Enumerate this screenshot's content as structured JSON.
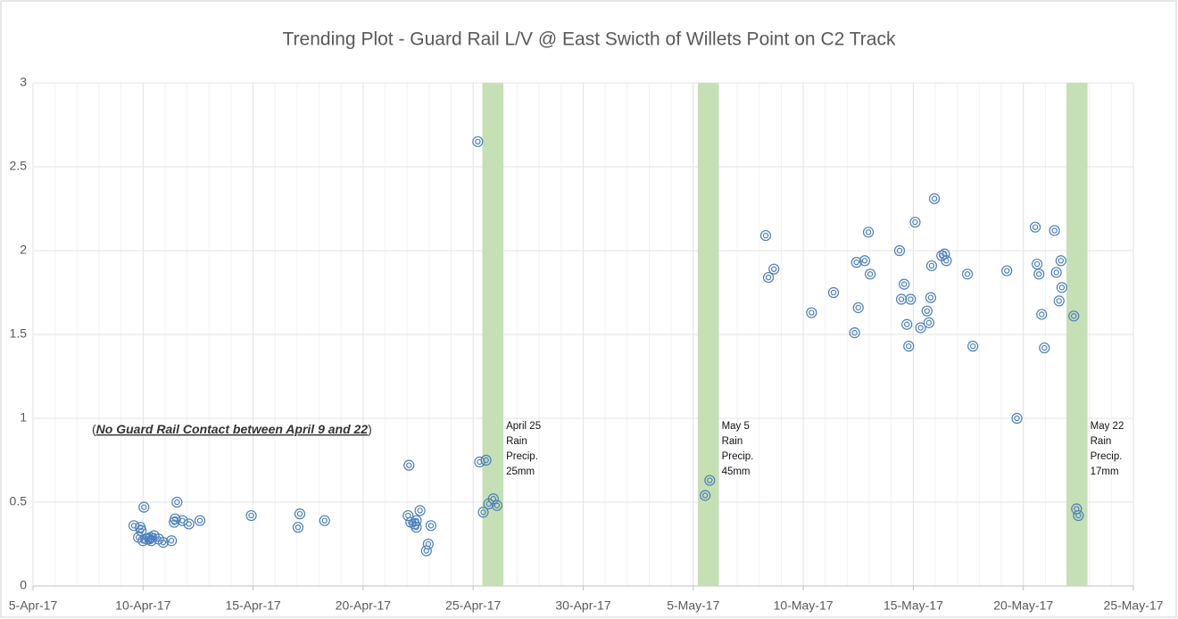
{
  "chart_data": {
    "type": "scatter",
    "title": "Trending Plot - Guard Rail L/V @ East Swicth of Willets Point on C2 Track",
    "xlim": [
      "2017-04-05T00:00",
      "2017-05-25T00:00"
    ],
    "xticks": [
      {
        "value": "2017-04-05T00:00",
        "label": "5-Apr-17"
      },
      {
        "value": "2017-04-10T00:00",
        "label": "10-Apr-17"
      },
      {
        "value": "2017-04-15T00:00",
        "label": "15-Apr-17"
      },
      {
        "value": "2017-04-20T00:00",
        "label": "20-Apr-17"
      },
      {
        "value": "2017-04-25T00:00",
        "label": "25-Apr-17"
      },
      {
        "value": "2017-04-30T00:00",
        "label": "30-Apr-17"
      },
      {
        "value": "2017-05-05T00:00",
        "label": "5-May-17"
      },
      {
        "value": "2017-05-10T00:00",
        "label": "10-May-17"
      },
      {
        "value": "2017-05-15T00:00",
        "label": "15-May-17"
      },
      {
        "value": "2017-05-20T00:00",
        "label": "20-May-17"
      },
      {
        "value": "2017-05-25T00:00",
        "label": "25-May-17"
      }
    ],
    "ylim": [
      0,
      3
    ],
    "yticks": [
      0,
      0.5,
      1,
      1.5,
      2,
      2.5,
      3
    ],
    "grid": true,
    "color": "#4a7ebb",
    "band_color": "#c5e0b4",
    "x": [
      "2017-04-09T14:00",
      "2017-04-09T19:00",
      "2017-04-09T21:00",
      "2017-04-09T22:00",
      "2017-04-10T01:00",
      "2017-04-10T00:00",
      "2017-04-10T04:00",
      "2017-04-10T07:00",
      "2017-04-10T08:00",
      "2017-04-10T09:00",
      "2017-04-10T12:00",
      "2017-04-10T17:00",
      "2017-04-10T22:00",
      "2017-04-11T07:00",
      "2017-04-11T10:00",
      "2017-04-11T11:00",
      "2017-04-11T13:00",
      "2017-04-11T19:00",
      "2017-04-12T02:00",
      "2017-04-12T14:00",
      "2017-04-14T22:00",
      "2017-04-17T01:00",
      "2017-04-17T03:00",
      "2017-04-18T06:00",
      "2017-04-22T01:00",
      "2017-04-22T02:00",
      "2017-04-22T04:00",
      "2017-04-22T08:00",
      "2017-04-22T10:00",
      "2017-04-22T10:00",
      "2017-04-22T14:00",
      "2017-04-22T21:00",
      "2017-04-22T23:00",
      "2017-04-23T02:00",
      "2017-04-25T05:00",
      "2017-04-25T07:00",
      "2017-04-25T11:00",
      "2017-04-25T14:00",
      "2017-04-25T17:00",
      "2017-04-25T22:00",
      "2017-04-26T02:00",
      "2017-05-05T13:00",
      "2017-05-05T18:00",
      "2017-05-08T07:00",
      "2017-05-08T10:00",
      "2017-05-08T16:00",
      "2017-05-10T09:00",
      "2017-05-11T09:00",
      "2017-05-12T08:00",
      "2017-05-12T10:00",
      "2017-05-12T12:00",
      "2017-05-12T19:00",
      "2017-05-12T23:00",
      "2017-05-13T01:00",
      "2017-05-14T09:00",
      "2017-05-14T11:00",
      "2017-05-14T14:00",
      "2017-05-14T17:00",
      "2017-05-14T19:00",
      "2017-05-14T21:00",
      "2017-05-15T02:00",
      "2017-05-15T08:00",
      "2017-05-15T15:00",
      "2017-05-15T17:00",
      "2017-05-15T19:00",
      "2017-05-15T20:00",
      "2017-05-15T23:00",
      "2017-05-16T07:00",
      "2017-05-16T10:00",
      "2017-05-16T12:00",
      "2017-05-17T11:00",
      "2017-05-17T17:00",
      "2017-05-19T06:00",
      "2017-05-19T17:00",
      "2017-05-20T13:00",
      "2017-05-20T15:00",
      "2017-05-20T17:00",
      "2017-05-20T20:00",
      "2017-05-20T23:00",
      "2017-05-21T10:00",
      "2017-05-21T12:00",
      "2017-05-21T15:00",
      "2017-05-21T17:00",
      "2017-05-21T18:00",
      "2017-05-22T07:00",
      "2017-05-22T10:00",
      "2017-05-22T12:00"
    ],
    "values": [
      0.36,
      0.29,
      0.35,
      0.33,
      0.47,
      0.27,
      0.28,
      0.28,
      0.29,
      0.27,
      0.3,
      0.28,
      0.26,
      0.27,
      0.38,
      0.4,
      0.5,
      0.39,
      0.37,
      0.39,
      0.42,
      0.35,
      0.43,
      0.39,
      0.42,
      0.72,
      0.38,
      0.37,
      0.39,
      0.35,
      0.45,
      0.21,
      0.25,
      0.36,
      2.65,
      0.74,
      0.44,
      0.75,
      0.49,
      0.52,
      0.48,
      0.54,
      0.63,
      2.09,
      1.84,
      1.89,
      1.63,
      1.75,
      1.51,
      1.93,
      1.66,
      1.94,
      2.11,
      1.86,
      2.0,
      1.71,
      1.8,
      1.56,
      1.43,
      1.71,
      2.17,
      1.54,
      1.64,
      1.57,
      1.72,
      1.91,
      2.31,
      1.97,
      1.98,
      1.94,
      1.86,
      1.43,
      1.88,
      1.0,
      2.14,
      1.92,
      1.86,
      1.62,
      1.42,
      2.12,
      1.87,
      1.7,
      1.94,
      1.78,
      1.61,
      0.46,
      0.42
    ],
    "bands": [
      {
        "start": "2017-04-25T10:00",
        "end": "2017-04-26T09:00",
        "label": [
          "April 25",
          "Rain",
          "Precip.",
          "25mm"
        ]
      },
      {
        "start": "2017-05-05T05:00",
        "end": "2017-05-06T04:00",
        "label": [
          "May 5",
          "Rain",
          "Precip.",
          "45mm"
        ]
      },
      {
        "start": "2017-05-21T23:00",
        "end": "2017-05-22T22:00",
        "label": [
          "May 22",
          "Rain",
          "Precip.",
          "17mm"
        ]
      }
    ],
    "annotation": [
      "(",
      "No Guard Rail Contact between April 9 and 22",
      ")"
    ]
  }
}
